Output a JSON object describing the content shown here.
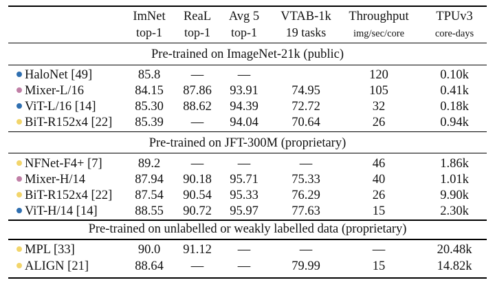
{
  "columns": [
    {
      "line1": "ImNet",
      "line2": "top-1"
    },
    {
      "line1": "ReaL",
      "line2": "top-1"
    },
    {
      "line1": "Avg 5",
      "line2": "top-1"
    },
    {
      "line1": "VTAB-1k",
      "line2": "19 tasks"
    },
    {
      "line1": "Throughput",
      "line2": "img/sec/core"
    },
    {
      "line1": "TPUv3",
      "line2": "core-days"
    }
  ],
  "colors": {
    "blue": "#2f6fb0",
    "pink": "#c07fa6",
    "yellow": "#f2d56b"
  },
  "sections": [
    {
      "title": "Pre-trained on ImageNet-21k (public)",
      "rows": [
        {
          "color": "#2f6fb0",
          "model": "HaloNet [49]",
          "values": [
            "85.8",
            "—",
            "—",
            "",
            "120",
            "0.10k"
          ]
        },
        {
          "color": "#c07fa6",
          "model": "Mixer-L/16",
          "values": [
            "84.15",
            "87.86",
            "93.91",
            "74.95",
            "105",
            "0.41k"
          ]
        },
        {
          "color": "#2f6fb0",
          "model": "ViT-L/16 [14]",
          "values": [
            "85.30",
            "88.62",
            "94.39",
            "72.72",
            "32",
            "0.18k"
          ]
        },
        {
          "color": "#f2d56b",
          "model": "BiT-R152x4 [22]",
          "values": [
            "85.39",
            "—",
            "94.04",
            "70.64",
            "26",
            "0.94k"
          ]
        }
      ]
    },
    {
      "title": "Pre-trained on JFT-300M (proprietary)",
      "rows": [
        {
          "color": "#f2d56b",
          "model": "NFNet-F4+ [7]",
          "values": [
            "89.2",
            "—",
            "—",
            "—",
            "46",
            "1.86k"
          ]
        },
        {
          "color": "#c07fa6",
          "model": "Mixer-H/14",
          "values": [
            "87.94",
            "90.18",
            "95.71",
            "75.33",
            "40",
            "1.01k"
          ]
        },
        {
          "color": "#f2d56b",
          "model": "BiT-R152x4 [22]",
          "values": [
            "87.54",
            "90.54",
            "95.33",
            "76.29",
            "26",
            "9.90k"
          ]
        },
        {
          "color": "#2f6fb0",
          "model": "ViT-H/14 [14]",
          "values": [
            "88.55",
            "90.72",
            "95.97",
            "77.63",
            "15",
            "2.30k"
          ]
        }
      ]
    },
    {
      "title": "Pre-trained on unlabelled or weakly labelled data (proprietary)",
      "rows": [
        {
          "color": "#f2d56b",
          "model": "MPL [33]",
          "values": [
            "90.0",
            "91.12",
            "—",
            "—",
            "—",
            "20.48k"
          ]
        },
        {
          "color": "#f2d56b",
          "model": "ALIGN [21]",
          "values": [
            "88.64",
            "—",
            "—",
            "79.99",
            "15",
            "14.82k"
          ]
        }
      ]
    }
  ]
}
